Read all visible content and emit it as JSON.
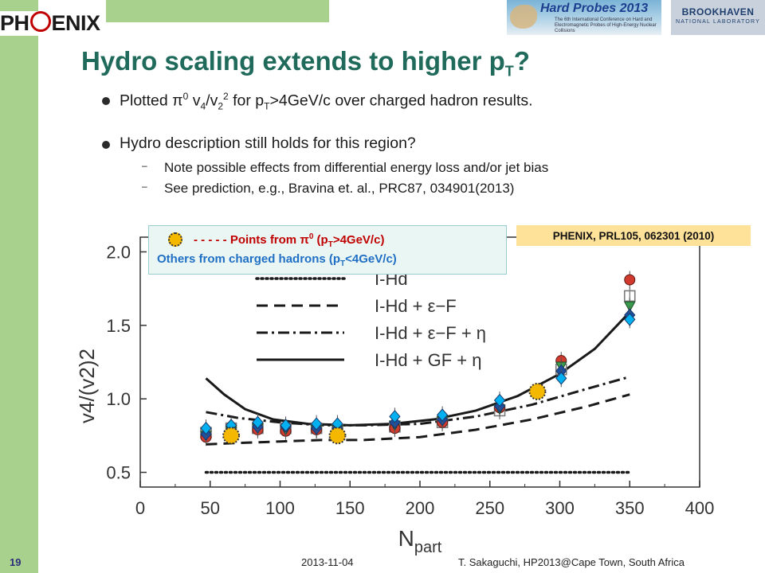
{
  "header": {
    "logo_left": "PH",
    "logo_right": "ENIX",
    "conference_banner_title": "Hard Probes 2013",
    "conference_banner_subtitle": "The 6th International Conference on Hard and Electromagnetic Probes of High-Energy Nuclear Collisions",
    "lab_logo_line1": "BROOKHAVEN",
    "lab_logo_line2": "NATIONAL LABORATORY"
  },
  "slide": {
    "title_main": "Hydro scaling extends to higher p",
    "title_sub": "T",
    "title_end": "?",
    "bullets": [
      {
        "t1": "Plotted ",
        "pi": "π",
        "sup1": "0",
        "t2": " v",
        "sub1": "4",
        "t3": "/v",
        "sub2": "2",
        "sup2": "2",
        "t4": " for p",
        "sub3": "T",
        "t5": ">4GeV/c over charged hadron results."
      },
      {
        "text": "Hydro description still holds for this region?"
      }
    ],
    "sub_bullets": [
      "Note possible effects from differential energy loss and/or jet bias",
      "See prediction, e.g., Bravina et. al., PRC87, 034901(2013)"
    ]
  },
  "annotations": {
    "reference": "PHENIX, PRL105, 062301 (2010)",
    "legend_line1_a": "- - - - - Points from ",
    "legend_line1_pi": "π",
    "legend_line1_sup": "0",
    "legend_line1_b": " (p",
    "legend_line1_sub": "T",
    "legend_line1_c": ">4GeV/c)",
    "legend_line2_a": "Others from charged hadrons (p",
    "legend_line2_sub": "T",
    "legend_line2_b": "<4GeV/c)"
  },
  "chart_data": {
    "type": "scatter",
    "xlabel": "N",
    "xlabel_sub": "part",
    "ylabel": "v4/(v2)2",
    "xlim": [
      0,
      400
    ],
    "ylim": [
      0.4,
      2.1
    ],
    "xticks": [
      0,
      50,
      100,
      150,
      200,
      250,
      300,
      350,
      400
    ],
    "yticks": [
      0.5,
      1.0,
      1.5,
      2.0
    ],
    "xtick_labels": [
      "0",
      "50",
      "100",
      "150",
      "200",
      "250",
      "300",
      "350",
      "400"
    ],
    "ytick_labels": [
      "0.5",
      "1.0",
      "1.5",
      "2.0"
    ],
    "grid": false,
    "legend_position": "top-left",
    "model_curves": [
      {
        "name": "I-Hd",
        "style": "dotted",
        "x": [
          47,
          350
        ],
        "y": [
          0.5,
          0.5
        ]
      },
      {
        "name": "I-Hd + ε−F",
        "style": "dashed",
        "x": [
          47,
          70,
          100,
          130,
          160,
          200,
          240,
          280,
          320,
          350
        ],
        "y": [
          0.69,
          0.7,
          0.71,
          0.72,
          0.72,
          0.74,
          0.79,
          0.86,
          0.95,
          1.03
        ]
      },
      {
        "name": "I-Hd + ε−F + η",
        "style": "dashdot",
        "x": [
          47,
          70,
          100,
          130,
          160,
          200,
          240,
          280,
          320,
          350
        ],
        "y": [
          0.91,
          0.87,
          0.84,
          0.82,
          0.82,
          0.83,
          0.88,
          0.96,
          1.07,
          1.15
        ]
      },
      {
        "name": "I-Hd + GF + η",
        "style": "solid",
        "x": [
          47,
          60,
          75,
          95,
          120,
          150,
          180,
          210,
          240,
          270,
          300,
          325,
          350
        ],
        "y": [
          1.14,
          1.03,
          0.93,
          0.86,
          0.83,
          0.82,
          0.83,
          0.86,
          0.92,
          1.02,
          1.17,
          1.34,
          1.59
        ]
      }
    ],
    "pi0_points": [
      {
        "x": 65,
        "y": 0.75
      },
      {
        "x": 141,
        "y": 0.75
      },
      {
        "x": 284,
        "y": 1.05
      }
    ],
    "charged_series": [
      {
        "color": "#00b0f0",
        "marker": "diamond",
        "x": [
          47,
          65,
          84,
          104,
          126,
          141,
          182,
          216,
          257,
          301,
          350
        ],
        "y": [
          0.8,
          0.82,
          0.84,
          0.82,
          0.83,
          0.83,
          0.88,
          0.89,
          0.99,
          1.14,
          1.54
        ]
      },
      {
        "color": "#1f4e9c",
        "marker": "diamond",
        "x": [
          47,
          65,
          84,
          104,
          126,
          141,
          182,
          216,
          257,
          301,
          350
        ],
        "y": [
          0.76,
          0.79,
          0.81,
          0.81,
          0.8,
          0.8,
          0.84,
          0.86,
          0.95,
          1.19,
          1.57
        ]
      },
      {
        "color": "#3a9b4f",
        "marker": "triangle-down",
        "x": [
          47,
          65,
          84,
          104,
          126,
          141,
          182,
          216,
          257,
          301,
          350
        ],
        "y": [
          0.75,
          0.78,
          0.8,
          0.79,
          0.79,
          0.79,
          0.82,
          0.85,
          0.93,
          1.22,
          1.63
        ]
      },
      {
        "color": "#d13b2f",
        "marker": "circle",
        "x": [
          47,
          65,
          84,
          104,
          126,
          141,
          182,
          216,
          257,
          301,
          350
        ],
        "y": [
          0.74,
          0.77,
          0.79,
          0.78,
          0.79,
          0.78,
          0.8,
          0.84,
          0.94,
          1.26,
          1.81
        ]
      },
      {
        "color": "#7a7a7a",
        "marker": "square",
        "x": [
          47,
          65,
          84,
          104,
          126,
          141,
          182,
          216,
          257,
          301,
          350
        ],
        "y": [
          0.77,
          0.8,
          0.8,
          0.8,
          0.8,
          0.79,
          0.81,
          0.84,
          0.92,
          1.2,
          1.7
        ]
      }
    ]
  },
  "footer": {
    "page_number": "19",
    "date": "2013-11-04",
    "author": "T. Sakaguchi, HP2013@Cape Town, South Africa"
  }
}
